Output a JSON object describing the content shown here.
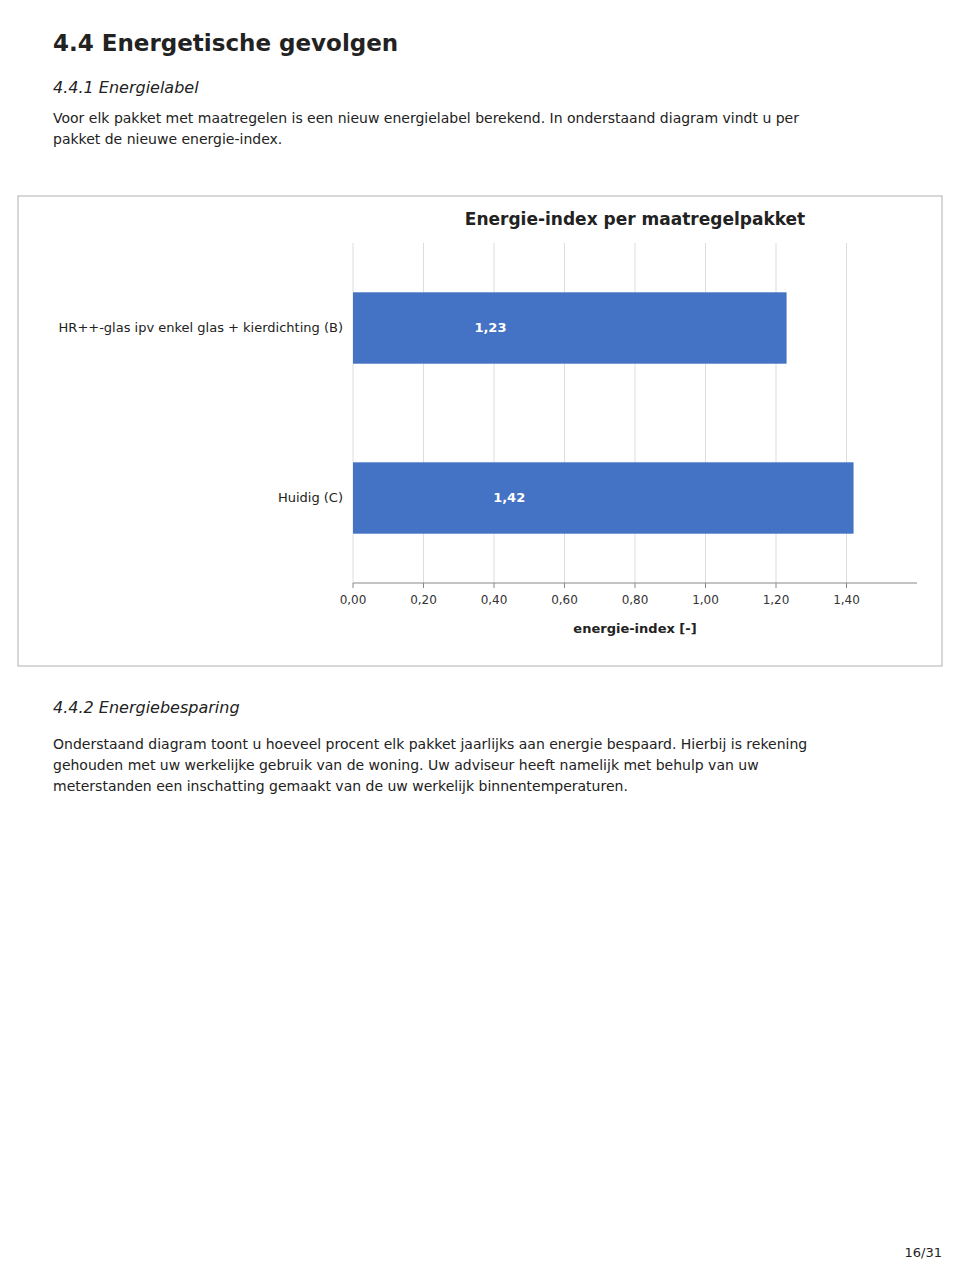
{
  "page_header": "4.4  Energetische gevolgen",
  "section_header": "4.4.1  Energielabel",
  "intro_text": "Voor elk pakket met maatregelen is een nieuw energielabel berekend. In onderstaand diagram vindt u per\npakket de nieuwe energie-index.",
  "chart_data": {
    "type": "bar",
    "orientation": "horizontal",
    "title": "Energie-index per maatregelpakket",
    "categories": [
      "HR++-glas ipv enkel glas + kierdichting (B)",
      "Huidig (C)"
    ],
    "values": [
      1.23,
      1.42
    ],
    "value_labels": [
      "1,23",
      "1,42"
    ],
    "data_labels": true,
    "color": "#4472C4",
    "xlabel": "energie-index [-]",
    "xlim": [
      0.0,
      1.6
    ],
    "xticks": [
      {
        "value": 0.0,
        "label": "0,00"
      },
      {
        "value": 0.2,
        "label": "0,20"
      },
      {
        "value": 0.4,
        "label": "0,40"
      },
      {
        "value": 0.6,
        "label": "0,60"
      },
      {
        "value": 0.8,
        "label": "0,80"
      },
      {
        "value": 1.0,
        "label": "1,00"
      },
      {
        "value": 1.2,
        "label": "1,20"
      },
      {
        "value": 1.4,
        "label": "1,40"
      }
    ],
    "grid": true
  },
  "section2_header": "4.4.2  Energiebesparing",
  "body_text": "Onderstaand diagram toont u hoeveel procent elk pakket jaarlijks aan energie bespaard. Hierbij is rekening\ngehouden met uw werkelijke gebruik van de woning. Uw adviseur heeft namelijk met behulp van uw\nmeterstanden een inschatting gemaakt van de uw werkelijk binnentemperaturen.",
  "page_number": "16/31"
}
